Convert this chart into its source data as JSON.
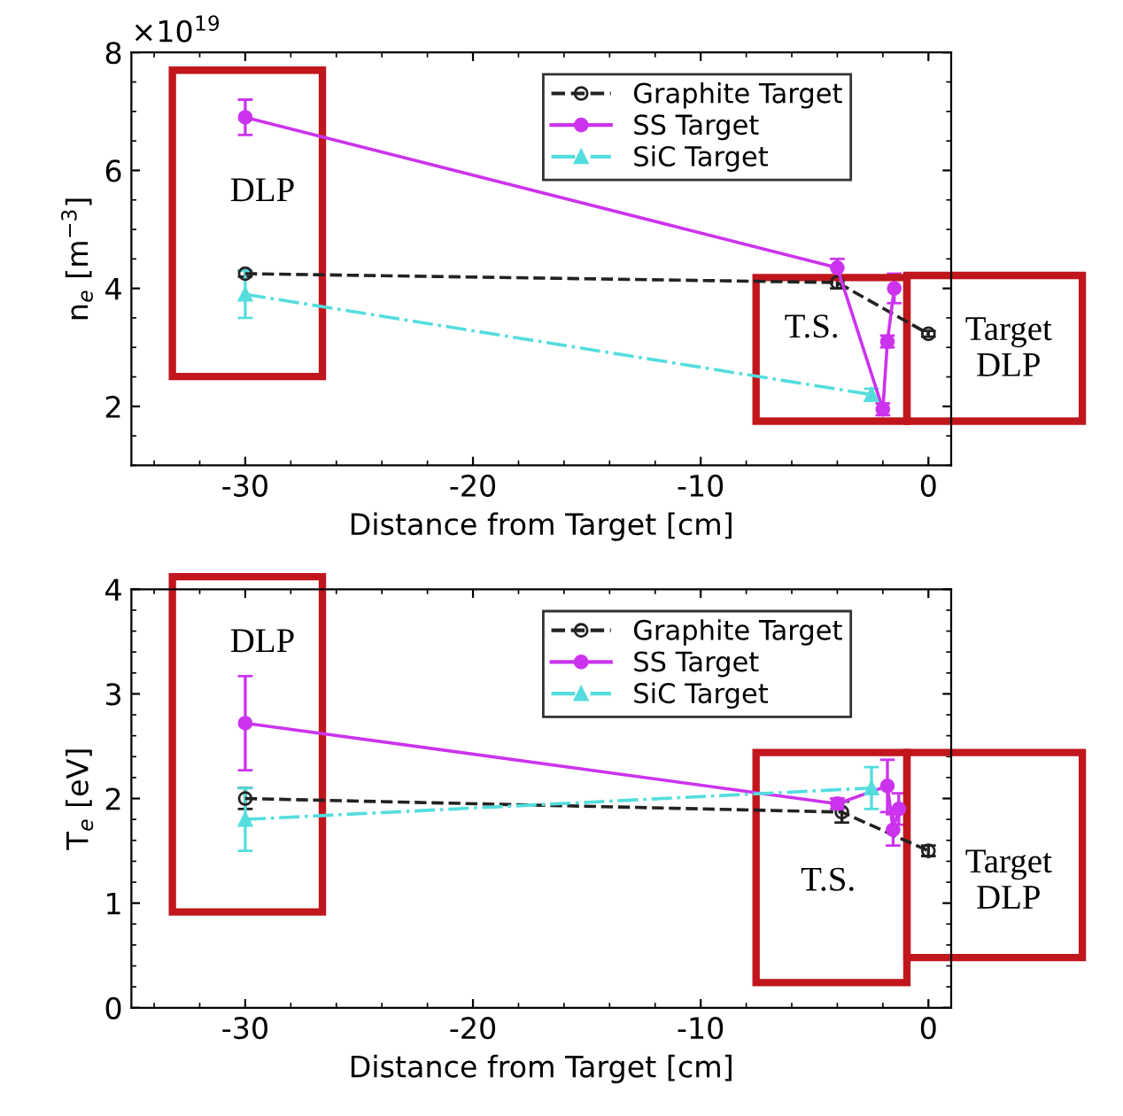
{
  "chart_data": [
    {
      "type": "line",
      "xlabel": "Distance from Target [cm]",
      "ylabel": "n$_{e}$ [m$^{−3}$]",
      "xlim": [
        -35,
        1
      ],
      "xticks": [
        -30,
        -20,
        -10,
        0
      ],
      "ylim": [
        1,
        8
      ],
      "yticks": [
        2,
        4,
        6,
        8
      ],
      "legend": "top right",
      "grid": false,
      "annotations": [
        "×10$^{19}$",
        "DLP",
        "T.S.",
        "Target\nDLP"
      ],
      "series": [
        {
          "name": "Graphite Target",
          "color": "#222222",
          "marker": "circle",
          "line_style": "dashed",
          "x": [
            -30,
            -4,
            0
          ],
          "values": [
            4.25,
            4.1,
            3.23
          ],
          "errors": [
            0.05,
            0.1,
            0.05
          ]
        },
        {
          "name": "SS Target",
          "color": "#cc33ee",
          "marker": "circle",
          "line_style": "solid",
          "x": [
            -30,
            -4,
            -2,
            -1.8,
            -1.5
          ],
          "values": [
            6.9,
            4.35,
            1.95,
            3.1,
            4.0
          ],
          "errors": [
            0.3,
            0.15,
            0.1,
            0.1,
            0.25
          ]
        },
        {
          "name": "SiC Target",
          "color": "#55dddd",
          "marker": "triangle",
          "line_style": "dashdot",
          "x": [
            -30,
            -2.5
          ],
          "values": [
            3.9,
            2.2
          ],
          "errors": [
            0.4,
            0.1
          ]
        }
      ]
    },
    {
      "type": "line",
      "xlabel": "Distance from Target [cm]",
      "ylabel": "T$_{e}$ [eV]",
      "xlim": [
        -35,
        1
      ],
      "xticks": [
        -30,
        -20,
        -10,
        0
      ],
      "ylim": [
        0,
        4
      ],
      "yticks": [
        0,
        1,
        2,
        3,
        4
      ],
      "legend": "top right",
      "grid": false,
      "annotations": [
        "DLP",
        "T.S.",
        "Target\nDLP"
      ],
      "series": [
        {
          "name": "Graphite Target",
          "color": "#222222",
          "marker": "circle",
          "line_style": "dashed",
          "x": [
            -30,
            -3.8,
            0
          ],
          "values": [
            2.0,
            1.87,
            1.5
          ],
          "errors": [
            0.1,
            0.1,
            0.05
          ]
        },
        {
          "name": "SS Target",
          "color": "#cc33ee",
          "marker": "circle",
          "line_style": "solid",
          "x": [
            -30,
            -4,
            -1.8,
            -1.55,
            -1.3
          ],
          "values": [
            2.72,
            1.95,
            2.12,
            1.7,
            1.9
          ],
          "errors": [
            0.45,
            0.05,
            0.25,
            0.15,
            0.15
          ]
        },
        {
          "name": "SiC Target",
          "color": "#55dddd",
          "marker": "triangle",
          "line_style": "dashdot",
          "x": [
            -30,
            -2.5
          ],
          "values": [
            1.8,
            2.1
          ],
          "errors": [
            0.3,
            0.2
          ]
        }
      ]
    }
  ]
}
